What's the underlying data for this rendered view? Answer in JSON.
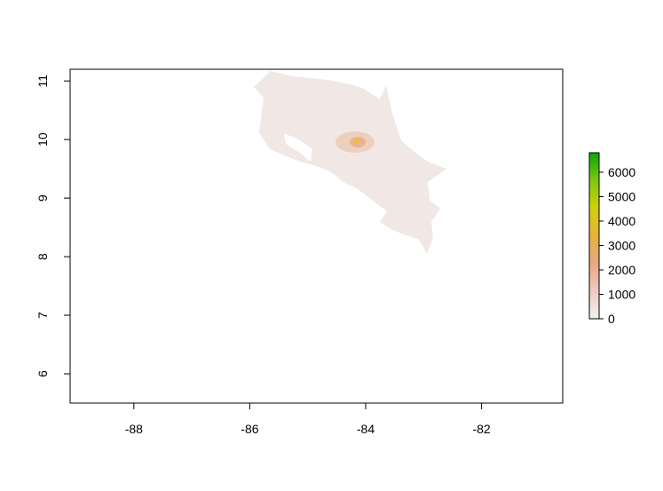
{
  "map": {
    "x_axis": {
      "range": [
        -89.1,
        -80.6
      ],
      "ticks": [
        "-88",
        "-86",
        "-84",
        "-82"
      ],
      "tick_values": [
        -88,
        -86,
        -84,
        -82
      ]
    },
    "y_axis": {
      "range": [
        5.5,
        11.2
      ],
      "ticks": [
        "6",
        "7",
        "8",
        "9",
        "10",
        "11"
      ],
      "tick_values": [
        6,
        7,
        8,
        9,
        10,
        11
      ]
    },
    "legend": {
      "placement": "right",
      "range": [
        0,
        6800
      ],
      "labels": [
        "0",
        "1000",
        "2000",
        "3000",
        "4000",
        "5000",
        "6000"
      ],
      "label_values": [
        0,
        1000,
        2000,
        3000,
        4000,
        5000,
        6000
      ],
      "colors": [
        "#f2f2f2",
        "#f0c9c0",
        "#eaa882",
        "#e5b23a",
        "#d2cf0a",
        "#7ec80e",
        "#0aa60a"
      ]
    },
    "colors": {
      "land": "#f1e8e6",
      "hotspot": "#e6a070",
      "peak": "#e5c440",
      "frame": "#000000"
    }
  }
}
